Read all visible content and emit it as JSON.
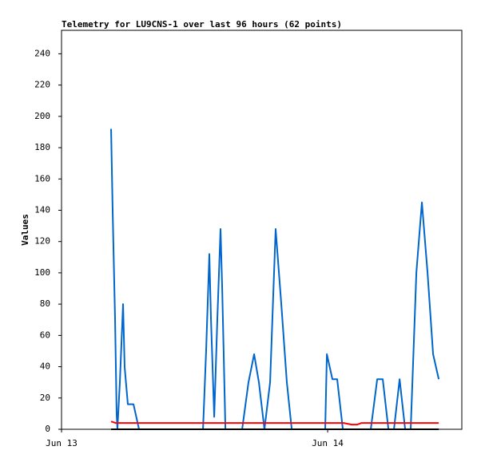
{
  "chart_data": {
    "type": "line",
    "title": "Telemetry for LU9CNS-1 over last 96 hours (62 points)",
    "y_label": "Values",
    "xlim": [
      0,
      36.1
    ],
    "ylim": [
      0,
      255
    ],
    "xticks": [
      {
        "value": 0,
        "label": "Jun 13"
      },
      {
        "value": 24,
        "label": "Jun 14"
      }
    ],
    "yticks": [
      0,
      20,
      40,
      60,
      80,
      100,
      120,
      140,
      160,
      180,
      200,
      220,
      240
    ],
    "series": [
      {
        "color": "#0066cc",
        "x": [
          4.47,
          4.61,
          4.83,
          4.97,
          5.04,
          5.26,
          5.55,
          5.69,
          5.98,
          6.49,
          6.99,
          12.76,
          13.04,
          13.33,
          13.48,
          13.77,
          14.05,
          14.34,
          14.49,
          14.78,
          16.29,
          16.86,
          17.37,
          17.8,
          18.3,
          18.81,
          19.31,
          19.82,
          20.32,
          20.76,
          23.78,
          23.93,
          24.43,
          24.86,
          25.37,
          27.89,
          28.47,
          28.97,
          29.48,
          29.98,
          30.49,
          30.99,
          31.49,
          32.0,
          32.5,
          33.01,
          33.51,
          34.02
        ],
        "values": [
          192,
          140,
          70,
          10,
          0,
          30,
          80,
          40,
          16,
          16,
          0,
          0,
          50,
          112,
          70,
          8,
          70,
          128,
          90,
          0,
          0,
          30,
          48,
          30,
          0,
          30,
          128,
          80,
          30,
          0,
          0,
          48,
          32,
          32,
          0,
          0,
          32,
          32,
          0,
          0,
          32,
          0,
          0,
          100,
          145,
          100,
          48,
          32
        ]
      },
      {
        "color": "#ff0000",
        "x": [
          4.47,
          4.9,
          25.44,
          26.16,
          26.67,
          27.03,
          34.02
        ],
        "values": [
          5,
          4,
          4,
          3,
          3,
          4,
          4
        ]
      },
      {
        "color": "#000000",
        "x": [
          4.47,
          34.02
        ],
        "values": [
          0,
          0
        ]
      }
    ]
  }
}
